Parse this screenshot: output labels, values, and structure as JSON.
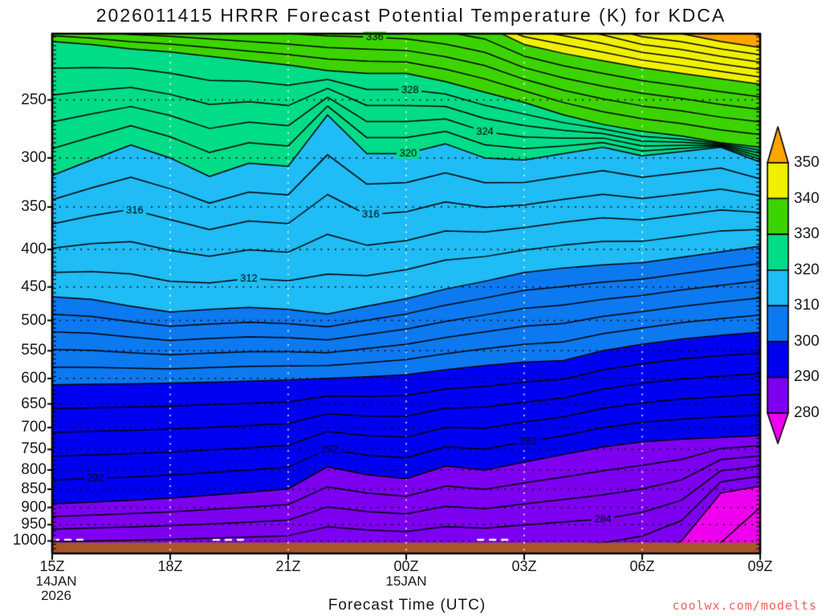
{
  "title": "2026011415 HRRR Forecast Potential Temperature (K) for KDCA",
  "x_axis_label": "Forecast Time (UTC)",
  "watermark": "coolwx.com/modelts",
  "chart_data": {
    "type": "filled-contour-cross-section",
    "title": "2026011415 HRRR Forecast Potential Temperature (K) for KDCA",
    "model": "HRRR",
    "variable": "Potential Temperature (K)",
    "station": "KDCA",
    "init_time": "2026011415",
    "x_axis": {
      "label": "Forecast Time (UTC)",
      "unit": "hours since 15Z 14JAN2026",
      "range_hours": [
        0,
        18
      ],
      "ticks": [
        {
          "t": 0,
          "label": "15Z",
          "sub": [
            "14JAN",
            "2026"
          ]
        },
        {
          "t": 3,
          "label": "18Z",
          "sub": []
        },
        {
          "t": 6,
          "label": "21Z",
          "sub": []
        },
        {
          "t": 9,
          "label": "00Z",
          "sub": [
            "15JAN"
          ]
        },
        {
          "t": 12,
          "label": "03Z",
          "sub": []
        },
        {
          "t": 15,
          "label": "06Z",
          "sub": []
        },
        {
          "t": 18,
          "label": "09Z",
          "sub": []
        }
      ],
      "gridline_hours": [
        3,
        6,
        9,
        12,
        15
      ]
    },
    "y_axis": {
      "unit": "hPa",
      "scale": "log-pressure",
      "range": [
        203,
        1040
      ],
      "ticks": [
        250,
        300,
        350,
        400,
        450,
        500,
        550,
        600,
        650,
        700,
        750,
        800,
        850,
        900,
        950,
        1000
      ]
    },
    "contours": {
      "line_interval_K": 2,
      "fill_interval_K": 10,
      "hour_samples": [
        0,
        1,
        2,
        3,
        4,
        5,
        6,
        7,
        8,
        9,
        10,
        11,
        12,
        13,
        14,
        15,
        16,
        17,
        18
      ],
      "isentrope_pressure_hPa": {
        "352": [
          183,
          183,
          183,
          183,
          183,
          183,
          183,
          183,
          183,
          183,
          183,
          183,
          183,
          183,
          186,
          190,
          194,
          199,
          204
        ],
        "350": [
          186,
          186,
          186,
          186,
          186,
          186,
          186,
          186,
          186,
          186,
          186,
          186,
          186,
          188,
          193,
          200,
          203,
          208,
          212
        ],
        "340": [
          190,
          190,
          190,
          190,
          190,
          190,
          190,
          190,
          190,
          192,
          194,
          198,
          210,
          216,
          221,
          226,
          230,
          234,
          238
        ],
        "330": [
          208,
          210,
          213,
          215,
          218,
          221,
          224,
          228,
          230,
          230,
          236,
          244,
          252,
          262,
          270,
          276,
          280,
          286,
          290
        ],
        "320": [
          317,
          302,
          288,
          300,
          318,
          305,
          308,
          262,
          296,
          296,
          287,
          300,
          302,
          296,
          290,
          298,
          294,
          290,
          304
        ],
        "310": [
          464,
          468,
          478,
          487,
          483,
          480,
          483,
          490,
          478,
          467,
          453,
          442,
          430,
          424,
          420,
          417,
          410,
          403,
          396
        ],
        "300": [
          612,
          611,
          610,
          609,
          607,
          605,
          603,
          600,
          597,
          593,
          584,
          576,
          570,
          567,
          550,
          539,
          530,
          524,
          519
        ],
        "290": [
          890,
          885,
          880,
          874,
          866,
          858,
          849,
          792,
          812,
          822,
          790,
          800,
          780,
          762,
          744,
          732,
          726,
          722,
          718
        ],
        "280": [
          1085,
          1085,
          1085,
          1085,
          1085,
          1085,
          1085,
          1085,
          1085,
          1085,
          1085,
          1085,
          1085,
          1085,
          1085,
          1060,
          1000,
          860,
          842
        ],
        "278": [
          1120,
          1120,
          1120,
          1120,
          1120,
          1120,
          1120,
          1120,
          1120,
          1120,
          1120,
          1120,
          1120,
          1120,
          1120,
          1120,
          1090,
          1005,
          900
        ]
      }
    },
    "contour_labels": [
      {
        "text": "336",
        "theta": 336,
        "t": 8.2
      },
      {
        "text": "328",
        "theta": 328,
        "t": 9.1
      },
      {
        "text": "324",
        "theta": 324,
        "t": 11.0
      },
      {
        "text": "320",
        "theta": 320,
        "t": 9.05
      },
      {
        "text": "316",
        "theta": 316,
        "t": 2.1
      },
      {
        "text": "316",
        "theta": 316,
        "t": 8.1
      },
      {
        "text": "312",
        "theta": 312,
        "t": 5.0
      },
      {
        "text": "292",
        "theta": 292,
        "t": 1.1
      },
      {
        "text": "292",
        "theta": 292,
        "t": 7.05
      },
      {
        "text": "292",
        "theta": 292,
        "t": 12.1
      },
      {
        "text": "284",
        "theta": 284,
        "t": 14.0
      }
    ],
    "fill_bands": [
      {
        "min": null,
        "max": 280,
        "color": "#EE00EE"
      },
      {
        "min": 280,
        "max": 290,
        "color": "#7D00F0"
      },
      {
        "min": 290,
        "max": 300,
        "color": "#0000F0"
      },
      {
        "min": 300,
        "max": 310,
        "color": "#0C79F0"
      },
      {
        "min": 310,
        "max": 320,
        "color": "#20BCF5"
      },
      {
        "min": 320,
        "max": 330,
        "color": "#00DC87"
      },
      {
        "min": 330,
        "max": 340,
        "color": "#3CD400"
      },
      {
        "min": 340,
        "max": 350,
        "color": "#F0F000"
      },
      {
        "min": 350,
        "max": null,
        "color": "#FFA500"
      }
    ],
    "colorbar": {
      "labels": [
        "350",
        "340",
        "330",
        "320",
        "310",
        "300",
        "290",
        "280"
      ],
      "colors_top_to_bottom": [
        "#FFA500",
        "#F0F000",
        "#3CD400",
        "#00DC87",
        "#20BCF5",
        "#0C79F0",
        "#0000F0",
        "#7D00F0",
        "#EE00EE"
      ],
      "arrow_top": true,
      "arrow_bottom": true
    },
    "terrain": {
      "color": "#A8552B",
      "top_pressure_hPa": 1005
    },
    "surface_line": {
      "color": "#FFFFFF",
      "style": "dashed",
      "pressure_hPa": 1000,
      "segments_hours": [
        [
          0,
          0.82
        ],
        [
          4.08,
          5.0
        ],
        [
          10.8,
          11.7
        ]
      ]
    },
    "grid": {
      "h_dot_color": "#000000",
      "v_dot_color": "#FFFFFF"
    },
    "line_color": "#000000"
  }
}
